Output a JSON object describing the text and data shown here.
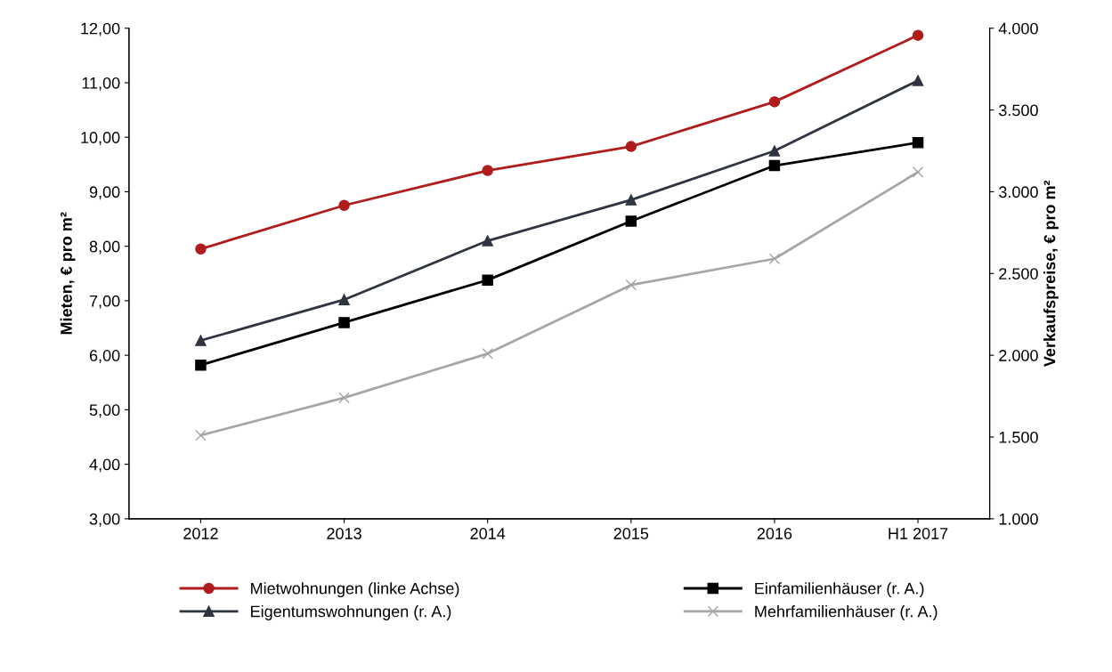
{
  "chart_data": {
    "type": "line",
    "categories": [
      "2012",
      "2013",
      "2014",
      "2015",
      "2016",
      "H1 2017"
    ],
    "ylabel": "Mieten, € pro m²",
    "y2label": "Verkaufspreise, € pro m²",
    "ylim": [
      3,
      12
    ],
    "yticks": [
      {
        "value": 3,
        "label": "3,00"
      },
      {
        "value": 4,
        "label": "4,00"
      },
      {
        "value": 5,
        "label": "5,00"
      },
      {
        "value": 6,
        "label": "6,00"
      },
      {
        "value": 7,
        "label": "7,00"
      },
      {
        "value": 8,
        "label": "8,00"
      },
      {
        "value": 9,
        "label": "9,00"
      },
      {
        "value": 10,
        "label": "10,00"
      },
      {
        "value": 11,
        "label": "11,00"
      },
      {
        "value": 12,
        "label": "12,00"
      }
    ],
    "y2lim": [
      1000,
      4000
    ],
    "y2ticks": [
      {
        "value": 1000,
        "label": "1.000"
      },
      {
        "value": 1500,
        "label": "1.500"
      },
      {
        "value": 2000,
        "label": "2.000"
      },
      {
        "value": 2500,
        "label": "2.500"
      },
      {
        "value": 3000,
        "label": "3.000"
      },
      {
        "value": 3500,
        "label": "3.500"
      },
      {
        "value": 4000,
        "label": "4.000"
      }
    ],
    "grid": false,
    "legend": "bottom",
    "series": [
      {
        "name": "Mietwohnungen (linke Achse)",
        "color": "#b01c1c",
        "marker": "circle",
        "values": [
          7.95,
          8.75,
          9.39,
          9.83,
          10.65,
          11.87
        ]
      },
      {
        "name": "Eigentumswohnungen (r. A.)",
        "color": "#2e3440",
        "marker": "triangle",
        "axis": "y2",
        "values": [
          2090,
          2340,
          2700,
          2950,
          3250,
          3680
        ]
      },
      {
        "name": "Einfamilienhäuser (r. A.)",
        "color": "#000000",
        "marker": "square",
        "axis": "y2",
        "values": [
          1940,
          2200,
          2460,
          2820,
          3160,
          3300
        ]
      },
      {
        "name": "Mehrfamilienhäuser (r. A.)",
        "color": "#a6a6a6",
        "marker": "cross",
        "axis": "y2",
        "values": [
          1510,
          1740,
          2010,
          2430,
          2590,
          3120
        ]
      }
    ]
  }
}
